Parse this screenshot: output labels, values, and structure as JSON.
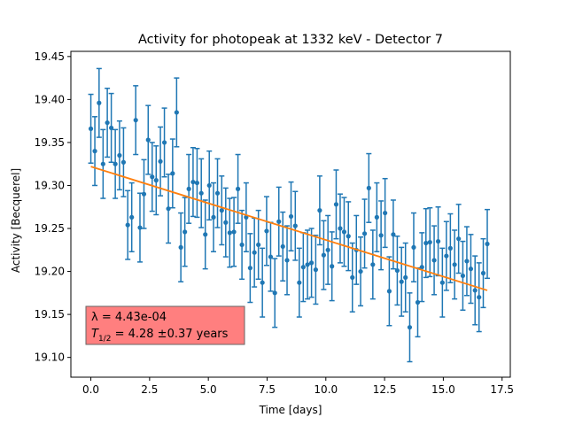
{
  "chart_data": {
    "type": "scatter",
    "title": "Activity for photopeak at 1332 keV - Detector 7",
    "xlabel": "Time [days]",
    "ylabel": "Activity [Becquerel]",
    "xlim": [
      -0.85,
      17.85
    ],
    "ylim": [
      19.077,
      19.456
    ],
    "xticks": [
      0.0,
      2.5,
      5.0,
      7.5,
      10.0,
      12.5,
      15.0,
      17.5
    ],
    "xtick_labels": [
      "0.0",
      "2.5",
      "5.0",
      "7.5",
      "10.0",
      "12.5",
      "15.0",
      "17.5"
    ],
    "yticks": [
      19.1,
      19.15,
      19.2,
      19.25,
      19.3,
      19.35,
      19.4,
      19.45
    ],
    "ytick_labels": [
      "19.10",
      "19.15",
      "19.20",
      "19.25",
      "19.30",
      "19.35",
      "19.40",
      "19.45"
    ],
    "grid": false,
    "series": [
      {
        "type": "errorbar",
        "color": "#1f77b4",
        "x": [
          0.0,
          0.17,
          0.35,
          0.52,
          0.7,
          0.87,
          1.04,
          1.22,
          1.39,
          1.57,
          1.74,
          1.91,
          2.09,
          2.26,
          2.44,
          2.61,
          2.78,
          2.96,
          3.13,
          3.3,
          3.48,
          3.65,
          3.83,
          4.0,
          4.17,
          4.35,
          4.52,
          4.7,
          4.87,
          5.04,
          5.22,
          5.39,
          5.57,
          5.74,
          5.91,
          6.09,
          6.26,
          6.43,
          6.61,
          6.78,
          6.96,
          7.13,
          7.3,
          7.48,
          7.65,
          7.83,
          8.0,
          8.17,
          8.35,
          8.52,
          8.7,
          8.87,
          9.04,
          9.22,
          9.39,
          9.57,
          9.74,
          9.91,
          10.09,
          10.26,
          10.44,
          10.61,
          10.78,
          10.96,
          11.13,
          11.3,
          11.48,
          11.65,
          11.83,
          12.0,
          12.17,
          12.35,
          12.52,
          12.7,
          12.87,
          13.04,
          13.22,
          13.39,
          13.57,
          13.74,
          13.91,
          14.09,
          14.26,
          14.43,
          14.61,
          14.78,
          14.96,
          15.13,
          15.3,
          15.48,
          15.65,
          15.83,
          16.0,
          16.17,
          16.35,
          16.52,
          16.7,
          16.87
        ],
        "y": [
          19.366,
          19.34,
          19.396,
          19.325,
          19.373,
          19.367,
          19.325,
          19.335,
          19.327,
          19.254,
          19.263,
          19.376,
          19.251,
          19.29,
          19.353,
          19.31,
          19.306,
          19.328,
          19.35,
          19.273,
          19.314,
          19.385,
          19.228,
          19.246,
          19.296,
          19.304,
          19.303,
          19.291,
          19.243,
          19.3,
          19.263,
          19.291,
          19.271,
          19.257,
          19.245,
          19.246,
          19.296,
          19.231,
          19.263,
          19.204,
          19.222,
          19.231,
          19.187,
          19.247,
          19.217,
          19.175,
          19.258,
          19.229,
          19.213,
          19.264,
          19.253,
          19.187,
          19.205,
          19.208,
          19.21,
          19.202,
          19.271,
          19.219,
          19.225,
          19.206,
          19.278,
          19.25,
          19.246,
          19.241,
          19.193,
          19.225,
          19.2,
          19.244,
          19.297,
          19.208,
          19.263,
          19.242,
          19.268,
          19.177,
          19.243,
          19.201,
          19.188,
          19.193,
          19.135,
          19.228,
          19.164,
          19.205,
          19.233,
          19.234,
          19.213,
          19.235,
          19.187,
          19.218,
          19.227,
          19.208,
          19.238,
          19.195,
          19.212,
          19.203,
          19.178,
          19.17,
          19.198,
          19.232
        ],
        "err": [
          0.04,
          0.04,
          0.04,
          0.04,
          0.04,
          0.04,
          0.04,
          0.04,
          0.04,
          0.04,
          0.04,
          0.04,
          0.04,
          0.04,
          0.04,
          0.04,
          0.04,
          0.04,
          0.04,
          0.04,
          0.04,
          0.04,
          0.04,
          0.04,
          0.04,
          0.04,
          0.04,
          0.04,
          0.04,
          0.04,
          0.04,
          0.04,
          0.04,
          0.04,
          0.04,
          0.04,
          0.04,
          0.04,
          0.04,
          0.04,
          0.04,
          0.04,
          0.04,
          0.04,
          0.04,
          0.04,
          0.04,
          0.04,
          0.04,
          0.04,
          0.04,
          0.04,
          0.04,
          0.04,
          0.04,
          0.04,
          0.04,
          0.04,
          0.04,
          0.04,
          0.04,
          0.04,
          0.04,
          0.04,
          0.04,
          0.04,
          0.04,
          0.04,
          0.04,
          0.04,
          0.04,
          0.04,
          0.04,
          0.04,
          0.04,
          0.04,
          0.04,
          0.04,
          0.04,
          0.04,
          0.04,
          0.04,
          0.04,
          0.04,
          0.04,
          0.04,
          0.04,
          0.04,
          0.04,
          0.04,
          0.04,
          0.04,
          0.04,
          0.04,
          0.04,
          0.04,
          0.04,
          0.04
        ]
      },
      {
        "type": "line",
        "color": "#ff7f0e",
        "x": [
          0.0,
          16.87
        ],
        "y": [
          19.322,
          19.178
        ]
      }
    ],
    "annotation": {
      "lambda_label": "λ = 4.43e-04",
      "halflife_prefix": "T",
      "halflife_sub": "1/2",
      "halflife_value": " = 4.28 ±0.37 years",
      "box_color": "#ff7f7f",
      "position": "bottom-left"
    }
  }
}
